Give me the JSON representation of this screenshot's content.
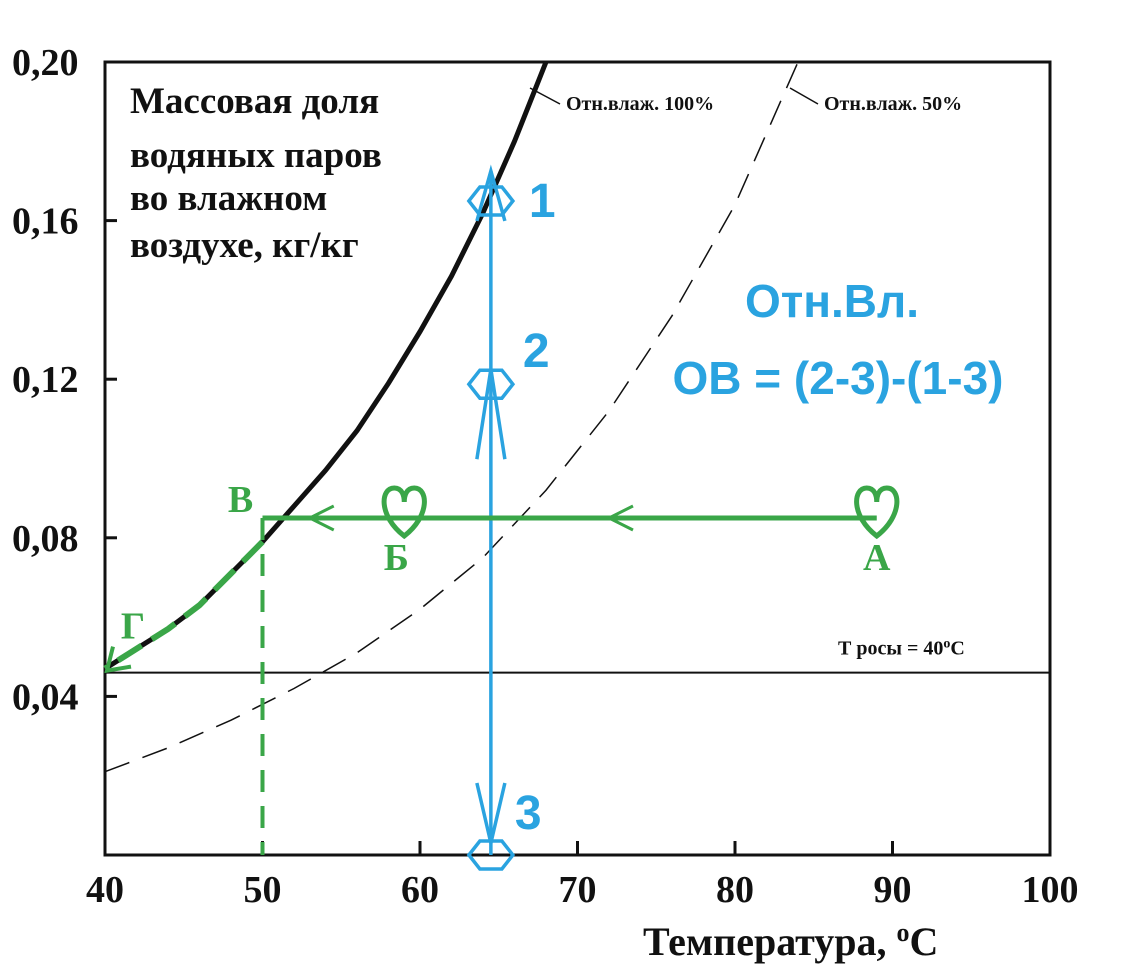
{
  "chart_data": {
    "type": "line",
    "title": "Массовая доля водяных паров во влажном воздухе, кг/кг",
    "title_lines": [
      "Массовая доля",
      "водяных паров",
      "во влажном",
      "воздухе, кг/кг"
    ],
    "xlabel": "Температура, ",
    "xlabel_sup": "о",
    "xlabel_unit": "С",
    "xlim": [
      40,
      100
    ],
    "ylim": [
      0,
      0.2
    ],
    "xticks": [
      40,
      50,
      60,
      70,
      80,
      90,
      100
    ],
    "xtick_labels": [
      "40",
      "50",
      "60",
      "70",
      "80",
      "90",
      "100"
    ],
    "yticks": [
      0.04,
      0.08,
      0.12,
      0.16,
      0.2
    ],
    "ytick_labels": [
      "0,04",
      "0,08",
      "0,12",
      "0,16",
      "0,20"
    ],
    "grid": false,
    "series": [
      {
        "name": "Отн.влаж. 100%",
        "style": "solid-thick",
        "color": "#111111",
        "x": [
          40,
          42,
          44,
          46,
          48,
          50,
          52,
          54,
          56,
          58,
          60,
          62,
          64,
          66,
          68
        ],
        "y": [
          0.047,
          0.052,
          0.057,
          0.063,
          0.071,
          0.079,
          0.088,
          0.097,
          0.107,
          0.119,
          0.132,
          0.146,
          0.162,
          0.18,
          0.2
        ]
      },
      {
        "name": "Отн.влаж. 50%",
        "style": "dashed",
        "color": "#111111",
        "x": [
          40,
          44,
          48,
          52,
          56,
          60,
          64,
          68,
          72,
          76,
          80,
          84
        ],
        "y": [
          0.021,
          0.027,
          0.034,
          0.042,
          0.051,
          0.062,
          0.075,
          0.092,
          0.112,
          0.136,
          0.164,
          0.2
        ]
      }
    ],
    "dew_line": {
      "label": "Т росы = 40",
      "label_sup": "о",
      "label_unit": "С",
      "y": 0.046,
      "x": [
        40,
        100
      ]
    },
    "process_path": {
      "color": "#3aa648",
      "points": [
        {
          "label": "А",
          "x": 89,
          "y": 0.085
        },
        {
          "label": "Б",
          "x": 59,
          "y": 0.085
        },
        {
          "label": "В",
          "x": 50,
          "y": 0.085
        },
        {
          "label": "Г",
          "x": 40,
          "y": 0.046
        }
      ]
    },
    "measurement": {
      "color": "#2aa3e0",
      "x": 64.5,
      "points": [
        {
          "label": "1",
          "y": 0.17
        },
        {
          "label": "2",
          "y": 0.12
        },
        {
          "label": "3",
          "y": 0.0
        }
      ],
      "title": "Отн.Вл.",
      "formula": "ОВ = (2-3)-(1-3)"
    }
  }
}
